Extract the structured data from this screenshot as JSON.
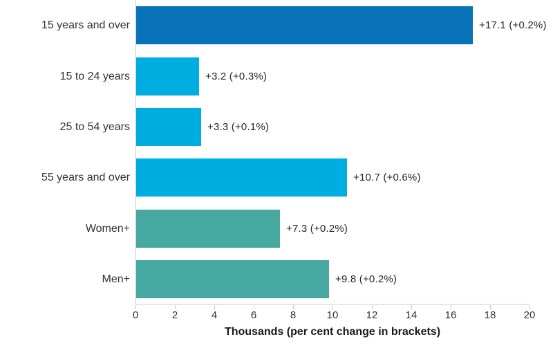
{
  "chart_data": {
    "type": "bar",
    "orientation": "horizontal",
    "categories": [
      "15 years and over",
      "15 to 24 years",
      "25 to 54 years",
      "55 years and over",
      "Women+",
      "Men+"
    ],
    "values": [
      17.1,
      3.2,
      3.3,
      10.7,
      7.3,
      9.8
    ],
    "bar_labels": [
      "+17.1 (+0.2%)",
      "+3.2 (+0.3%)",
      "+3.3 (+0.1%)",
      "+10.7 (+0.6%)",
      "+7.3 (+0.2%)",
      "+9.8 (+0.2%)"
    ],
    "bar_colors": [
      "#0873b8",
      "#00ade0",
      "#00ade0",
      "#00ade0",
      "#47a7a1",
      "#47a7a1"
    ],
    "title": "",
    "xlabel": "Thousands (per cent change in brackets)",
    "ylabel": "",
    "xlim": [
      0,
      20
    ],
    "xticks": [
      0,
      2,
      4,
      6,
      8,
      10,
      12,
      14,
      16,
      18,
      20
    ],
    "grid": "off",
    "legend": "none",
    "axis_line_color": "#c9c9c9",
    "tick_label_color": "#333333",
    "category_label_color": "#333333",
    "value_label_color": "#262626",
    "background_color": "#ffffff"
  }
}
